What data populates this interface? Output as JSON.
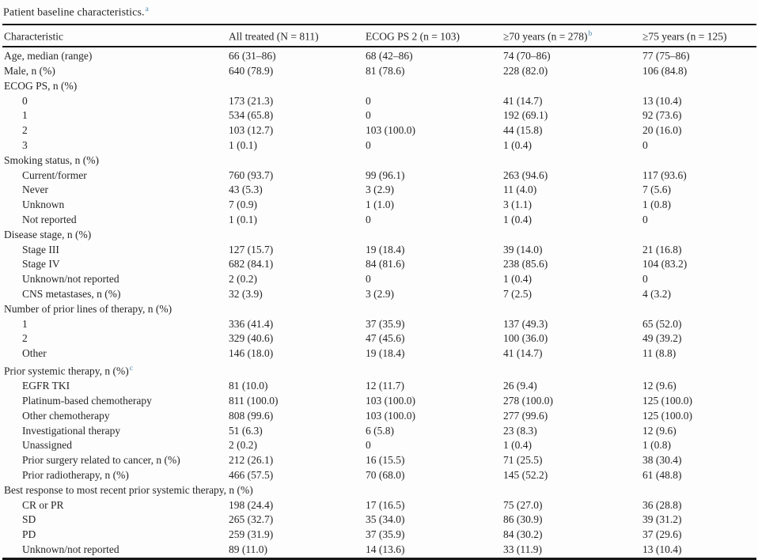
{
  "title": {
    "text": "Patient baseline characteristics.",
    "sup": "a"
  },
  "colors": {
    "text": "#262626",
    "rule": "#161616",
    "superscript": "#4a87ad",
    "background": "#fdfdfd"
  },
  "table": {
    "columns": [
      {
        "label": "Characteristic",
        "sup": ""
      },
      {
        "label": "All treated (N = 811)",
        "sup": ""
      },
      {
        "label": "ECOG PS 2 (n = 103)",
        "sup": ""
      },
      {
        "label": "≥70 years (n = 278)",
        "sup": "b"
      },
      {
        "label": "≥75 years (n = 125)",
        "sup": ""
      }
    ],
    "rows": [
      {
        "label": "Age, median (range)",
        "indent": 0,
        "sup": "",
        "values": [
          "66 (31–86)",
          "68 (42–86)",
          "74 (70–86)",
          "77 (75–86)"
        ]
      },
      {
        "label": "Male, n (%)",
        "indent": 0,
        "sup": "",
        "values": [
          "640 (78.9)",
          "81 (78.6)",
          "228 (82.0)",
          "106 (84.8)"
        ]
      },
      {
        "label": "ECOG PS, n (%)",
        "indent": 0,
        "sup": "",
        "values": [
          "",
          "",
          "",
          ""
        ]
      },
      {
        "label": "0",
        "indent": 1,
        "sup": "",
        "values": [
          "173 (21.3)",
          "0",
          "41 (14.7)",
          "13 (10.4)"
        ]
      },
      {
        "label": "1",
        "indent": 1,
        "sup": "",
        "values": [
          "534 (65.8)",
          "0",
          "192 (69.1)",
          "92 (73.6)"
        ]
      },
      {
        "label": "2",
        "indent": 1,
        "sup": "",
        "values": [
          "103 (12.7)",
          "103 (100.0)",
          "44 (15.8)",
          "20 (16.0)"
        ]
      },
      {
        "label": "3",
        "indent": 1,
        "sup": "",
        "values": [
          "1 (0.1)",
          "0",
          "1 (0.4)",
          "0"
        ]
      },
      {
        "label": "Smoking status, n (%)",
        "indent": 0,
        "sup": "",
        "values": [
          "",
          "",
          "",
          ""
        ]
      },
      {
        "label": "Current/former",
        "indent": 1,
        "sup": "",
        "values": [
          "760 (93.7)",
          "99 (96.1)",
          "263 (94.6)",
          "117 (93.6)"
        ]
      },
      {
        "label": "Never",
        "indent": 1,
        "sup": "",
        "values": [
          "43 (5.3)",
          "3 (2.9)",
          "11 (4.0)",
          "7 (5.6)"
        ]
      },
      {
        "label": "Unknown",
        "indent": 1,
        "sup": "",
        "values": [
          "7 (0.9)",
          "1 (1.0)",
          "3 (1.1)",
          "1 (0.8)"
        ]
      },
      {
        "label": "Not reported",
        "indent": 1,
        "sup": "",
        "values": [
          "1 (0.1)",
          "0",
          "1 (0.4)",
          "0"
        ]
      },
      {
        "label": "Disease stage, n (%)",
        "indent": 0,
        "sup": "",
        "values": [
          "",
          "",
          "",
          ""
        ]
      },
      {
        "label": "Stage III",
        "indent": 1,
        "sup": "",
        "values": [
          "127 (15.7)",
          "19 (18.4)",
          "39 (14.0)",
          "21 (16.8)"
        ]
      },
      {
        "label": "Stage IV",
        "indent": 1,
        "sup": "",
        "values": [
          "682 (84.1)",
          "84 (81.6)",
          "238 (85.6)",
          "104 (83.2)"
        ]
      },
      {
        "label": "Unknown/not reported",
        "indent": 1,
        "sup": "",
        "values": [
          "2 (0.2)",
          "0",
          "1 (0.4)",
          "0"
        ]
      },
      {
        "label": "CNS metastases, n (%)",
        "indent": 1,
        "sup": "",
        "values": [
          "32 (3.9)",
          "3 (2.9)",
          "7 (2.5)",
          "4 (3.2)"
        ]
      },
      {
        "label": "Number of prior lines of therapy, n (%)",
        "indent": 0,
        "sup": "",
        "values": [
          "",
          "",
          "",
          ""
        ]
      },
      {
        "label": "1",
        "indent": 1,
        "sup": "",
        "values": [
          "336 (41.4)",
          "37 (35.9)",
          "137 (49.3)",
          "65 (52.0)"
        ]
      },
      {
        "label": "2",
        "indent": 1,
        "sup": "",
        "values": [
          "329 (40.6)",
          "47 (45.6)",
          "100 (36.0)",
          "49 (39.2)"
        ]
      },
      {
        "label": "Other",
        "indent": 1,
        "sup": "",
        "values": [
          "146 (18.0)",
          "19 (18.4)",
          "41 (14.7)",
          "11 (8.8)"
        ]
      },
      {
        "label": "Prior systemic therapy, n (%)",
        "indent": 0,
        "sup": "c",
        "values": [
          "",
          "",
          "",
          ""
        ]
      },
      {
        "label": "EGFR TKI",
        "indent": 1,
        "sup": "",
        "values": [
          "81 (10.0)",
          "12 (11.7)",
          "26 (9.4)",
          "12 (9.6)"
        ]
      },
      {
        "label": "Platinum-based chemotherapy",
        "indent": 1,
        "sup": "",
        "values": [
          "811 (100.0)",
          "103 (100.0)",
          "278 (100.0)",
          "125 (100.0)"
        ]
      },
      {
        "label": "Other chemotherapy",
        "indent": 1,
        "sup": "",
        "values": [
          "808 (99.6)",
          "103 (100.0)",
          "277 (99.6)",
          "125 (100.0)"
        ]
      },
      {
        "label": "Investigational therapy",
        "indent": 1,
        "sup": "",
        "values": [
          "51 (6.3)",
          "6 (5.8)",
          "23 (8.3)",
          "12 (9.6)"
        ]
      },
      {
        "label": "Unassigned",
        "indent": 1,
        "sup": "",
        "values": [
          "2 (0.2)",
          "0",
          "1 (0.4)",
          "1 (0.8)"
        ]
      },
      {
        "label": "Prior surgery related to cancer, n (%)",
        "indent": 1,
        "sup": "",
        "values": [
          "212 (26.1)",
          "16 (15.5)",
          "71 (25.5)",
          "38 (30.4)"
        ]
      },
      {
        "label": "Prior radiotherapy, n (%)",
        "indent": 1,
        "sup": "",
        "values": [
          "466 (57.5)",
          "70 (68.0)",
          "145 (52.2)",
          "61 (48.8)"
        ]
      },
      {
        "label": "Best response to most recent prior systemic therapy, n (%)",
        "indent": 0,
        "sup": "",
        "values": [
          "",
          "",
          "",
          ""
        ]
      },
      {
        "label": "CR or PR",
        "indent": 1,
        "sup": "",
        "values": [
          "198 (24.4)",
          "17 (16.5)",
          "75 (27.0)",
          "36 (28.8)"
        ]
      },
      {
        "label": "SD",
        "indent": 1,
        "sup": "",
        "values": [
          "265 (32.7)",
          "35 (34.0)",
          "86 (30.9)",
          "39 (31.2)"
        ]
      },
      {
        "label": "PD",
        "indent": 1,
        "sup": "",
        "values": [
          "259 (31.9)",
          "37 (35.9)",
          "84 (30.2)",
          "37 (29.6)"
        ]
      },
      {
        "label": "Unknown/not reported",
        "indent": 1,
        "sup": "",
        "values": [
          "89 (11.0)",
          "14 (13.6)",
          "33 (11.9)",
          "13 (10.4)"
        ]
      }
    ]
  }
}
